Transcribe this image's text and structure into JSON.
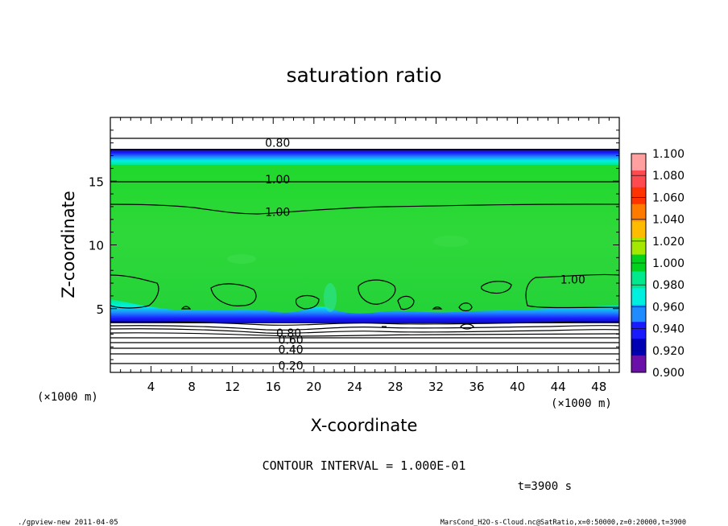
{
  "chart_data": {
    "type": "heatmap",
    "title": "saturation ratio",
    "xlabel": "X-coordinate",
    "ylabel": "Z-coordinate",
    "x_unit_left": "(×1000 m)",
    "x_unit_right": "(×1000 m)",
    "xlim": [
      0,
      50
    ],
    "ylim": [
      0,
      20
    ],
    "x_ticks": [
      4,
      8,
      12,
      16,
      20,
      24,
      28,
      32,
      36,
      40,
      44,
      48
    ],
    "y_ticks": [
      5,
      10,
      15
    ],
    "colorbar": {
      "levels": [
        1.1,
        1.08,
        1.06,
        1.04,
        1.02,
        1.0,
        0.98,
        0.96,
        0.94,
        0.92,
        0.9
      ],
      "labels": [
        "1.100",
        "1.080",
        "1.060",
        "1.040",
        "1.020",
        "1.000",
        "0.980",
        "0.960",
        "0.940",
        "0.920",
        "0.900"
      ],
      "colors": [
        "#ff9fa0",
        "#ff4a50",
        "#ff3300",
        "#ff7b00",
        "#ffbb00",
        "#a4e800",
        "#00d21e",
        "#00e98c",
        "#00f0e0",
        "#1e8cff",
        "#1a1aff",
        "#0000b4",
        "#6a0fa8"
      ]
    },
    "contour_labels": [
      {
        "text": "0.80",
        "x": 15.2,
        "y": 18.0
      },
      {
        "text": "1.00",
        "x": 15.2,
        "y": 15.15
      },
      {
        "text": "1.00",
        "x": 15.2,
        "y": 12.6
      },
      {
        "text": "1.00",
        "x": 44.2,
        "y": 7.3
      },
      {
        "text": "0.80",
        "x": 16.3,
        "y": 3.1
      },
      {
        "text": "0.60",
        "x": 16.5,
        "y": 2.55
      },
      {
        "text": "0.40",
        "x": 16.5,
        "y": 1.8
      },
      {
        "text": "0.20",
        "x": 16.5,
        "y": 0.55
      }
    ],
    "contour_interval_text": "CONTOUR INTERVAL = 1.000E-01",
    "time_text": "t=3900 s"
  },
  "footer": {
    "left": "./gpview-new  2011-04-05",
    "right": "MarsCond_H2O-s-Cloud.nc@SatRatio,x=0:50000,z=0:20000,t=3900"
  },
  "colors": {
    "saturated_green": "#00d21e",
    "upper_green": "#1fdc28",
    "boundary_blue": "#1a1aff",
    "boundary_cyan": "#00e98c"
  }
}
